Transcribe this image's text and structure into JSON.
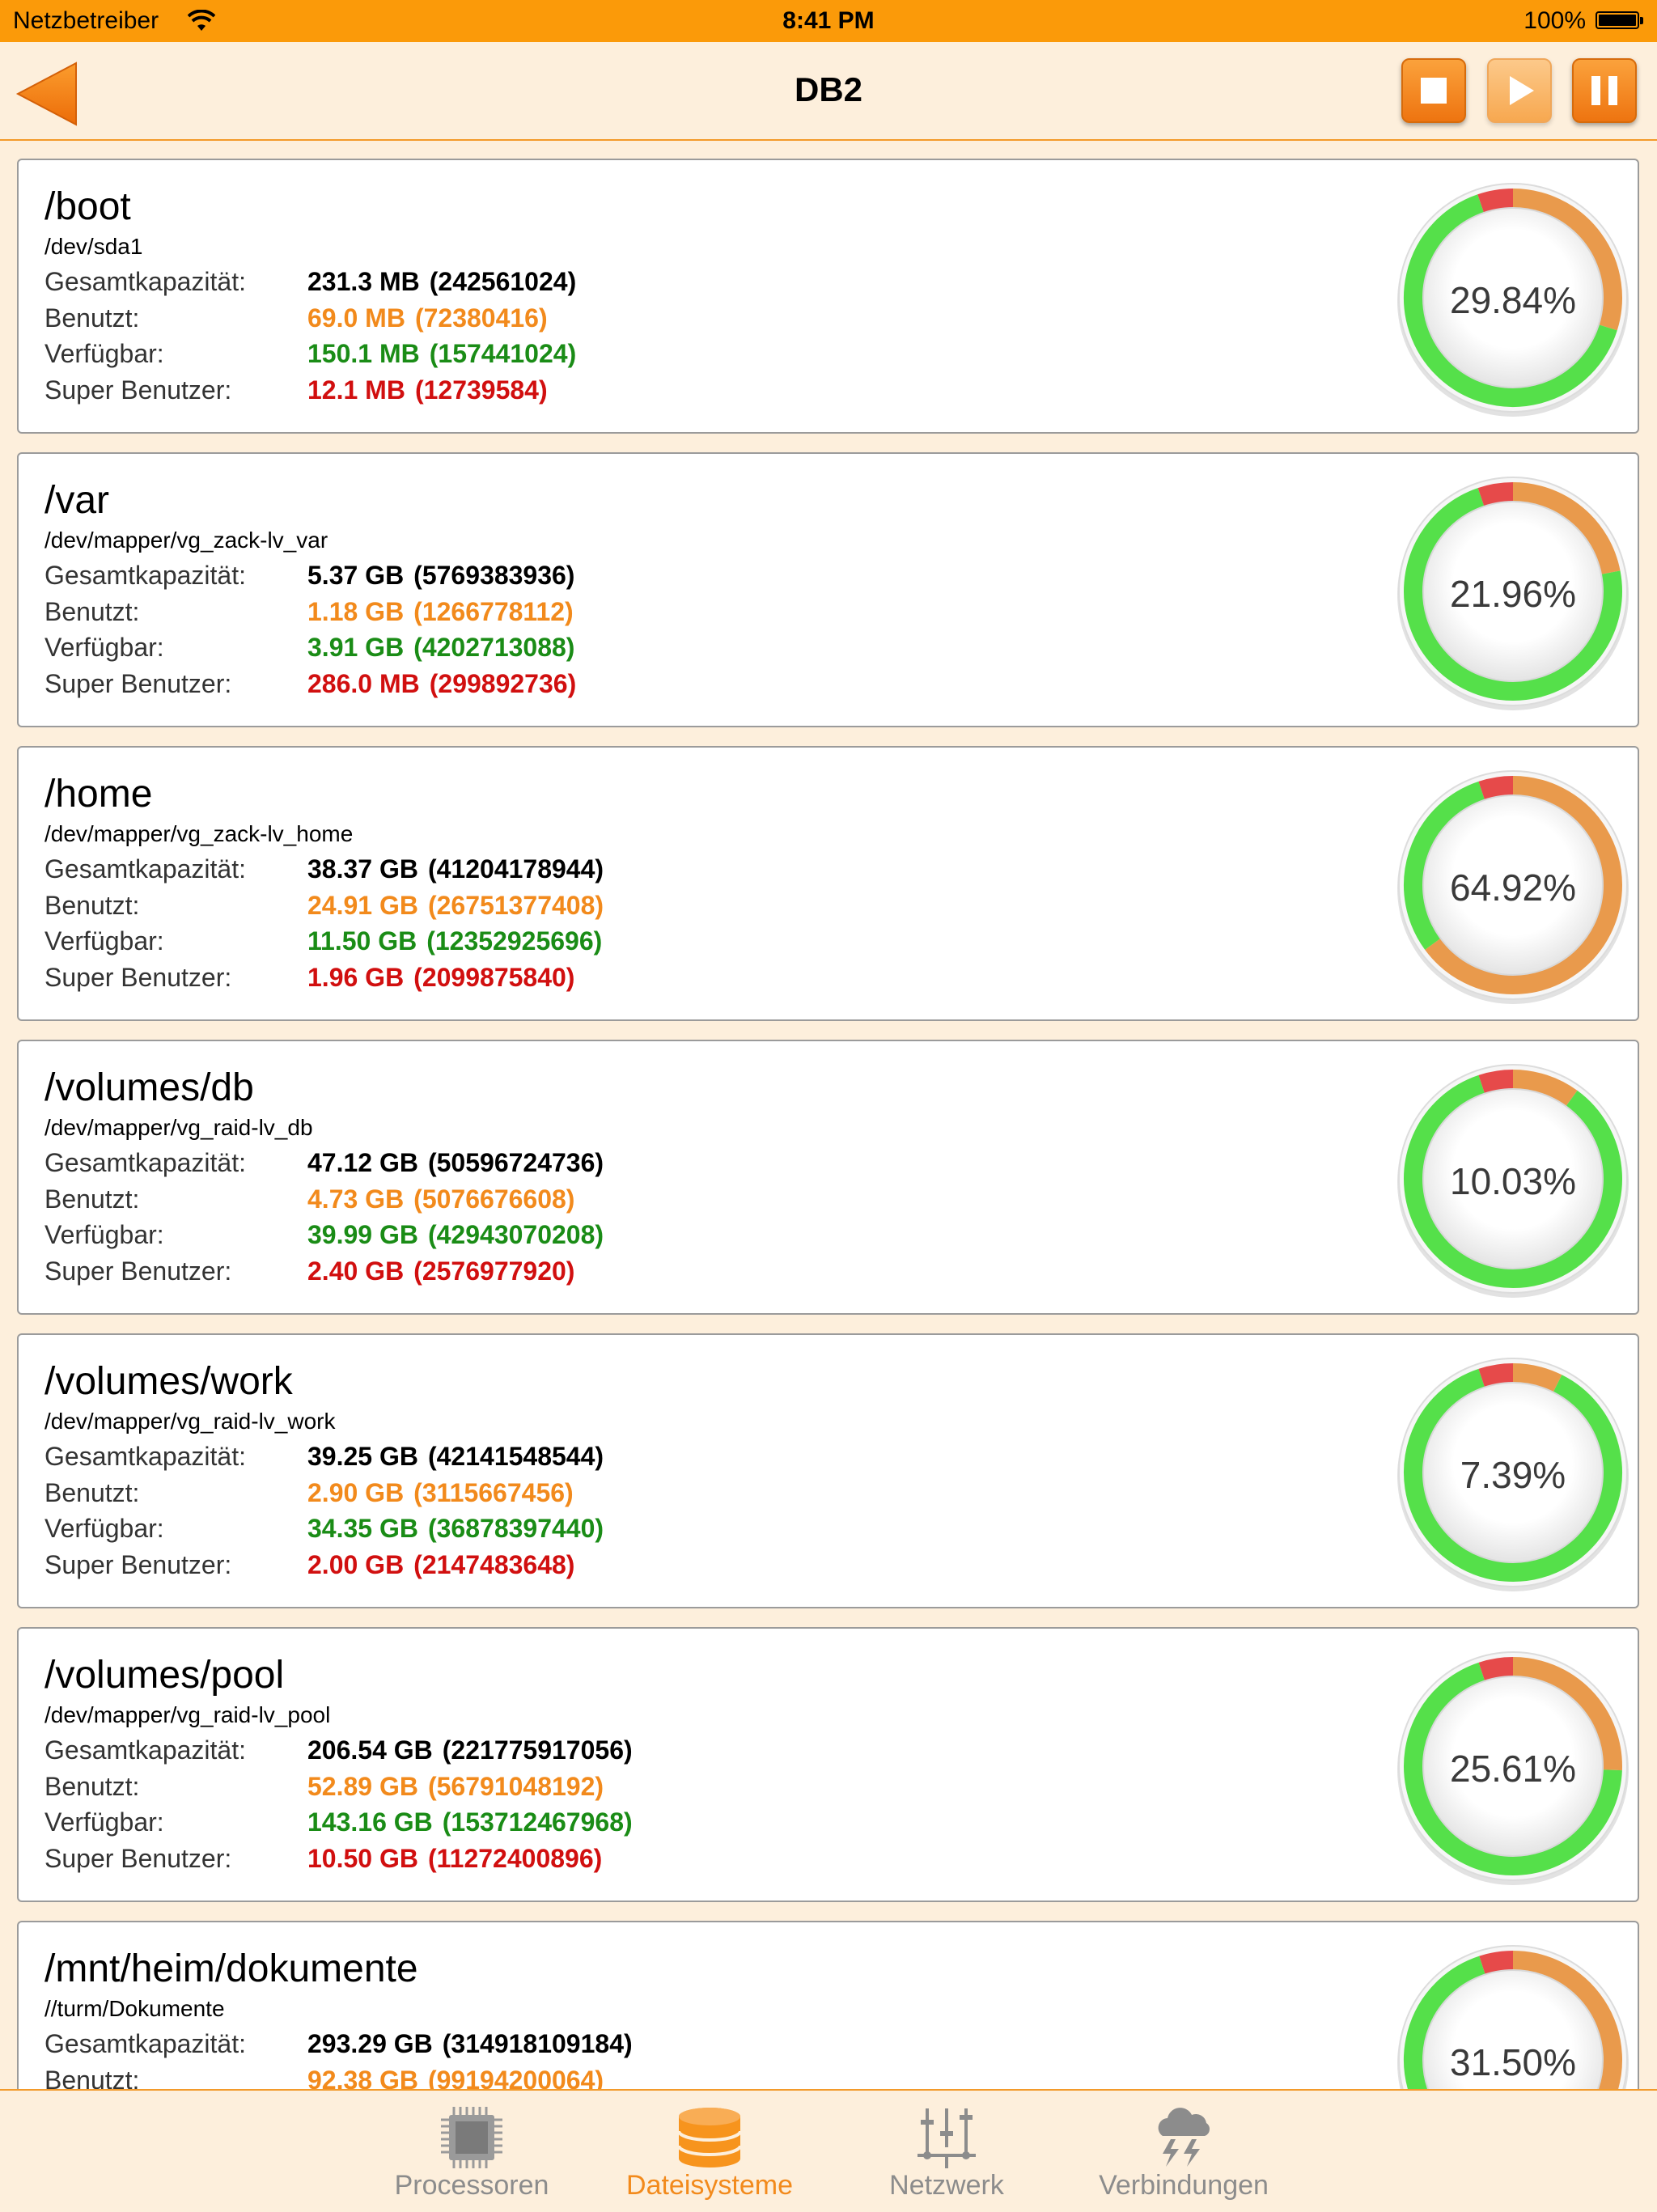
{
  "status_bar": {
    "carrier": "Netzbetreiber",
    "time": "8:41 PM",
    "battery": "100%"
  },
  "nav": {
    "title": "DB2",
    "back_icon": "back-arrow-icon",
    "controls": [
      "stop-icon",
      "play-icon",
      "pause-icon"
    ]
  },
  "labels": {
    "total": "Gesamtkapazität:",
    "used": "Benutzt:",
    "free": "Verfügbar:",
    "super": "Super Benutzer:"
  },
  "colors": {
    "accent": "#fb9a09",
    "used": "#f28a1c",
    "free": "#1a8c16",
    "super": "#d10f0f",
    "ring_green": "#55e04a",
    "ring_orange": "#e99a4c",
    "ring_red": "#e64a4a"
  },
  "filesystems": [
    {
      "mount": "/boot",
      "device": "/dev/sda1",
      "total": "231.3 MB",
      "total_raw": "(242561024)",
      "used": "69.0 MB",
      "used_raw": "(72380416)",
      "free": "150.1 MB",
      "free_raw": "(157441024)",
      "super": "12.1 MB",
      "super_raw": "(12739584)",
      "percent": "29.84%",
      "used_fraction": 0.2984,
      "super_fraction": 0.0525
    },
    {
      "mount": "/var",
      "device": "/dev/mapper/vg_zack-lv_var",
      "total": "5.37 GB",
      "total_raw": "(5769383936)",
      "used": "1.18 GB",
      "used_raw": "(1266778112)",
      "free": "3.91 GB",
      "free_raw": "(4202713088)",
      "super": "286.0 MB",
      "super_raw": "(299892736)",
      "percent": "21.96%",
      "used_fraction": 0.2196,
      "super_fraction": 0.052
    },
    {
      "mount": "/home",
      "device": "/dev/mapper/vg_zack-lv_home",
      "total": "38.37 GB",
      "total_raw": "(41204178944)",
      "used": "24.91 GB",
      "used_raw": "(26751377408)",
      "free": "11.50 GB",
      "free_raw": "(12352925696)",
      "super": "1.96 GB",
      "super_raw": "(2099875840)",
      "percent": "64.92%",
      "used_fraction": 0.6492,
      "super_fraction": 0.051
    },
    {
      "mount": "/volumes/db",
      "device": "/dev/mapper/vg_raid-lv_db",
      "total": "47.12 GB",
      "total_raw": "(50596724736)",
      "used": "4.73 GB",
      "used_raw": "(5076676608)",
      "free": "39.99 GB",
      "free_raw": "(42943070208)",
      "super": "2.40 GB",
      "super_raw": "(2576977920)",
      "percent": "10.03%",
      "used_fraction": 0.1003,
      "super_fraction": 0.051
    },
    {
      "mount": "/volumes/work",
      "device": "/dev/mapper/vg_raid-lv_work",
      "total": "39.25 GB",
      "total_raw": "(42141548544)",
      "used": "2.90 GB",
      "used_raw": "(3115667456)",
      "free": "34.35 GB",
      "free_raw": "(36878397440)",
      "super": "2.00 GB",
      "super_raw": "(2147483648)",
      "percent": "7.39%",
      "used_fraction": 0.0739,
      "super_fraction": 0.051
    },
    {
      "mount": "/volumes/pool",
      "device": "/dev/mapper/vg_raid-lv_pool",
      "total": "206.54 GB",
      "total_raw": "(221775917056)",
      "used": "52.89 GB",
      "used_raw": "(56791048192)",
      "free": "143.16 GB",
      "free_raw": "(153712467968)",
      "super": "10.50 GB",
      "super_raw": "(11272400896)",
      "percent": "25.61%",
      "used_fraction": 0.2561,
      "super_fraction": 0.0508
    },
    {
      "mount": "/mnt/heim/dokumente",
      "device": "//turm/Dokumente",
      "total": "293.29 GB",
      "total_raw": "(314918109184)",
      "used": "92.38 GB",
      "used_raw": "(99194200064)",
      "free": "",
      "free_raw": "",
      "super": "",
      "super_raw": "",
      "percent": "31.50%",
      "used_fraction": 0.315,
      "super_fraction": 0.05
    }
  ],
  "tabs": [
    {
      "label": "Processoren",
      "icon": "cpu-chip-icon",
      "active": false
    },
    {
      "label": "Dateisysteme",
      "icon": "database-icon",
      "active": true
    },
    {
      "label": "Netzwerk",
      "icon": "network-sliders-icon",
      "active": false
    },
    {
      "label": "Verbindungen",
      "icon": "storm-cloud-icon",
      "active": false
    }
  ]
}
